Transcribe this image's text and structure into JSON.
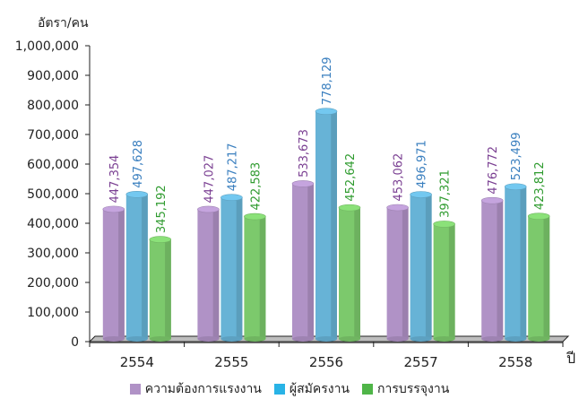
{
  "chart_data": {
    "type": "bar",
    "ylabel": "อัตรา/คน",
    "xlabel": "ปี",
    "categories": [
      "2554",
      "2555",
      "2556",
      "2557",
      "2558"
    ],
    "ylim": [
      0,
      1000000
    ],
    "yticks": [
      "0",
      "100,000",
      "200,000",
      "300,000",
      "400,000",
      "500,000",
      "600,000",
      "700,000",
      "800,000",
      "900,000",
      "1,000,000"
    ],
    "legend_position": "bottom",
    "series": [
      {
        "name": "ความต้องการแรงงาน",
        "values": [
          447354,
          447027,
          533673,
          453062,
          476772
        ],
        "labels": [
          "447,354",
          "447,027",
          "533,673",
          "453,062",
          "476,772"
        ],
        "color": "#b092c6",
        "label_color": "#7a3f92"
      },
      {
        "name": "ผู้สมัครงาน",
        "values": [
          497628,
          487217,
          778129,
          496971,
          523499
        ],
        "labels": [
          "497,628",
          "487,217",
          "778,129",
          "496,971",
          "523,499"
        ],
        "color": "#67b3d6",
        "label_color": "#3a7fbf"
      },
      {
        "name": "การบรรจุงาน",
        "values": [
          345192,
          422583,
          452642,
          397321,
          423812
        ],
        "labels": [
          "345,192",
          "422,583",
          "452,642",
          "397,321",
          "423,812"
        ],
        "color": "#7cc96c",
        "label_color": "#2f9b2f"
      }
    ],
    "grid": false
  }
}
